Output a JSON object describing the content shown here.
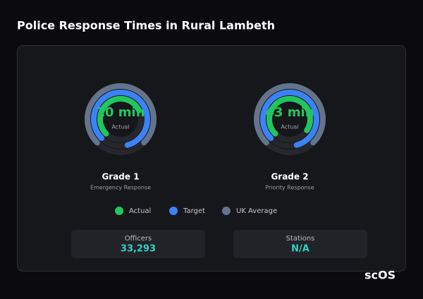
{
  "header": {
    "title": "Police Response Times in Rural Lambeth"
  },
  "legend": [
    {
      "name": "Actual",
      "color": "#22c55e"
    },
    {
      "name": "Target",
      "color": "#3b82f6"
    },
    {
      "name": "UK Average",
      "color": "#64748b"
    }
  ],
  "gauges": [
    {
      "title": "Grade 1",
      "subtitle": "Emergency Response",
      "range": [
        0,
        18
      ],
      "values": [
        10,
        15,
        13.5
      ],
      "value_labels": [
        "10 min"
      ],
      "center_label": "Actual"
    },
    {
      "title": "Grade 2",
      "subtitle": "Priority Response",
      "range": [
        0,
        60
      ],
      "values": [
        43,
        50,
        45
      ],
      "value_labels": [
        "43 min"
      ],
      "center_label": "Actual"
    }
  ],
  "stats": [
    {
      "label": "Officers",
      "value": "33,293"
    },
    {
      "label": "Stations",
      "value": "N/A"
    }
  ],
  "logo": "scOS"
}
